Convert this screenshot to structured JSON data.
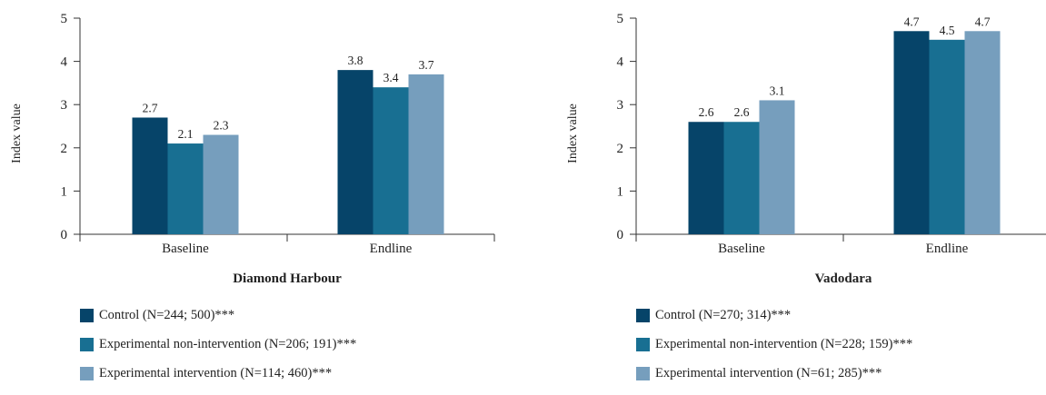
{
  "colors": [
    "#064469",
    "#186f92",
    "#769ebd"
  ],
  "chart_data": [
    {
      "type": "bar",
      "title": "Diamond Harbour",
      "ylabel": "Index value",
      "xlabel": "",
      "ylim": [
        0,
        5
      ],
      "yticks": [
        "0",
        "1",
        "2",
        "3",
        "4",
        "5"
      ],
      "categories": [
        "Baseline",
        "Endline"
      ],
      "series": [
        {
          "name": "Control (N=244; 500)***",
          "values": [
            2.7,
            3.8
          ],
          "labels": [
            "2.7",
            "3.8"
          ]
        },
        {
          "name": "Experimental non-intervention (N=206; 191)***",
          "values": [
            2.1,
            3.4
          ],
          "labels": [
            "2.1",
            "3.4"
          ]
        },
        {
          "name": "Experimental intervention (N=114; 460)***",
          "values": [
            2.3,
            3.7
          ],
          "labels": [
            "2.3",
            "3.7"
          ]
        }
      ],
      "legend": "bottom-left",
      "grid": false
    },
    {
      "type": "bar",
      "title": "Vadodara",
      "ylabel": "Index value",
      "xlabel": "",
      "ylim": [
        0,
        5
      ],
      "yticks": [
        "0",
        "1",
        "2",
        "3",
        "4",
        "5"
      ],
      "categories": [
        "Baseline",
        "Endline"
      ],
      "series": [
        {
          "name": "Control (N=270; 314)***",
          "values": [
            2.6,
            4.7
          ],
          "labels": [
            "2.6",
            "4.7"
          ]
        },
        {
          "name": "Experimental non-intervention (N=228; 159)***",
          "values": [
            2.6,
            4.5
          ],
          "labels": [
            "2.6",
            "4.5"
          ]
        },
        {
          "name": "Experimental intervention (N=61; 285)***",
          "values": [
            3.1,
            4.7
          ],
          "labels": [
            "3.1",
            "4.7"
          ]
        }
      ],
      "legend": "bottom-left",
      "grid": false
    }
  ]
}
